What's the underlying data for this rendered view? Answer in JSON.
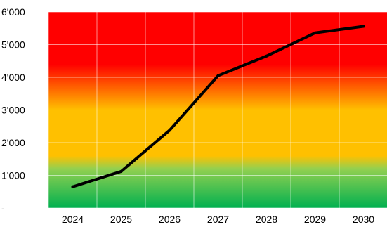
{
  "chart_data": {
    "type": "line",
    "title": "",
    "xlabel": "",
    "ylabel": "",
    "categories": [
      "2024",
      "2025",
      "2026",
      "2027",
      "2028",
      "2029",
      "2030"
    ],
    "series": [
      {
        "values": [
          650,
          1120,
          2380,
          4050,
          4650,
          5360,
          5560
        ],
        "color": "#000000"
      }
    ],
    "ylim": [
      0,
      6000
    ],
    "yticks": [
      0,
      1000,
      2000,
      3000,
      4000,
      5000,
      6000
    ],
    "ytick_labels": [
      "-",
      "1'000",
      "2'000",
      "3'000",
      "4'000",
      "5'000",
      "6'000"
    ],
    "grid": true,
    "legend": "none",
    "background_gradient": [
      {
        "value": 0,
        "color": "#00b050"
      },
      {
        "value": 1200,
        "color": "#92d050"
      },
      {
        "value": 1600,
        "color": "#ffc000"
      },
      {
        "value": 3000,
        "color": "#ffc000"
      },
      {
        "value": 4400,
        "color": "#ff0000"
      },
      {
        "value": 6000,
        "color": "#ff0000"
      }
    ]
  }
}
